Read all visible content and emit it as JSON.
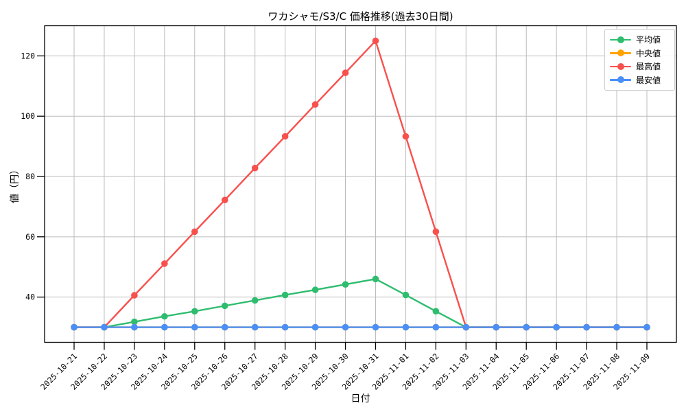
{
  "chart_data": {
    "type": "line",
    "title": "ワカシャモ/S3/C 価格推移(過去30日間)",
    "xlabel": "日付",
    "ylabel": "値（円）",
    "x": [
      "2025-10-21",
      "2025-10-22",
      "2025-10-23",
      "2025-10-24",
      "2025-10-25",
      "2025-10-26",
      "2025-10-27",
      "2025-10-28",
      "2025-10-29",
      "2025-10-30",
      "2025-10-31",
      "2025-11-01",
      "2025-11-02",
      "2025-11-03",
      "2025-11-04",
      "2025-11-05",
      "2025-11-06",
      "2025-11-07",
      "2025-11-08",
      "2025-11-09"
    ],
    "series": [
      {
        "id": "average",
        "name": "平均値",
        "color": "#2ebd6e",
        "values": [
          30,
          30,
          31.8,
          33.6,
          35.3,
          37.1,
          38.9,
          40.7,
          42.4,
          44.2,
          46,
          40.7,
          35.3,
          30,
          30,
          30,
          30,
          30,
          30,
          30
        ]
      },
      {
        "id": "median",
        "name": "中央値",
        "color": "#ffa302",
        "values": [
          30,
          30,
          30,
          30,
          30,
          30,
          30,
          30,
          30,
          30,
          30,
          30,
          30,
          30,
          30,
          30,
          30,
          30,
          30,
          30
        ]
      },
      {
        "id": "max",
        "name": "最高値",
        "color": "#f8504d",
        "values": [
          30,
          30,
          40.6,
          51.1,
          61.7,
          72.2,
          82.8,
          93.3,
          103.9,
          114.4,
          125,
          93.3,
          61.7,
          30,
          30,
          30,
          30,
          30,
          30,
          30
        ]
      },
      {
        "id": "min",
        "name": "最安値",
        "color": "#4a8ff7",
        "values": [
          30,
          30,
          30,
          30,
          30,
          30,
          30,
          30,
          30,
          30,
          30,
          30,
          30,
          30,
          30,
          30,
          30,
          30,
          30,
          30
        ]
      }
    ],
    "yticks": [
      40,
      60,
      80,
      100,
      120
    ],
    "ylim": [
      25,
      130
    ],
    "grid": true,
    "grid_color": "#bbbbbb",
    "background": "#ffffff",
    "legend_position": "upper right"
  }
}
